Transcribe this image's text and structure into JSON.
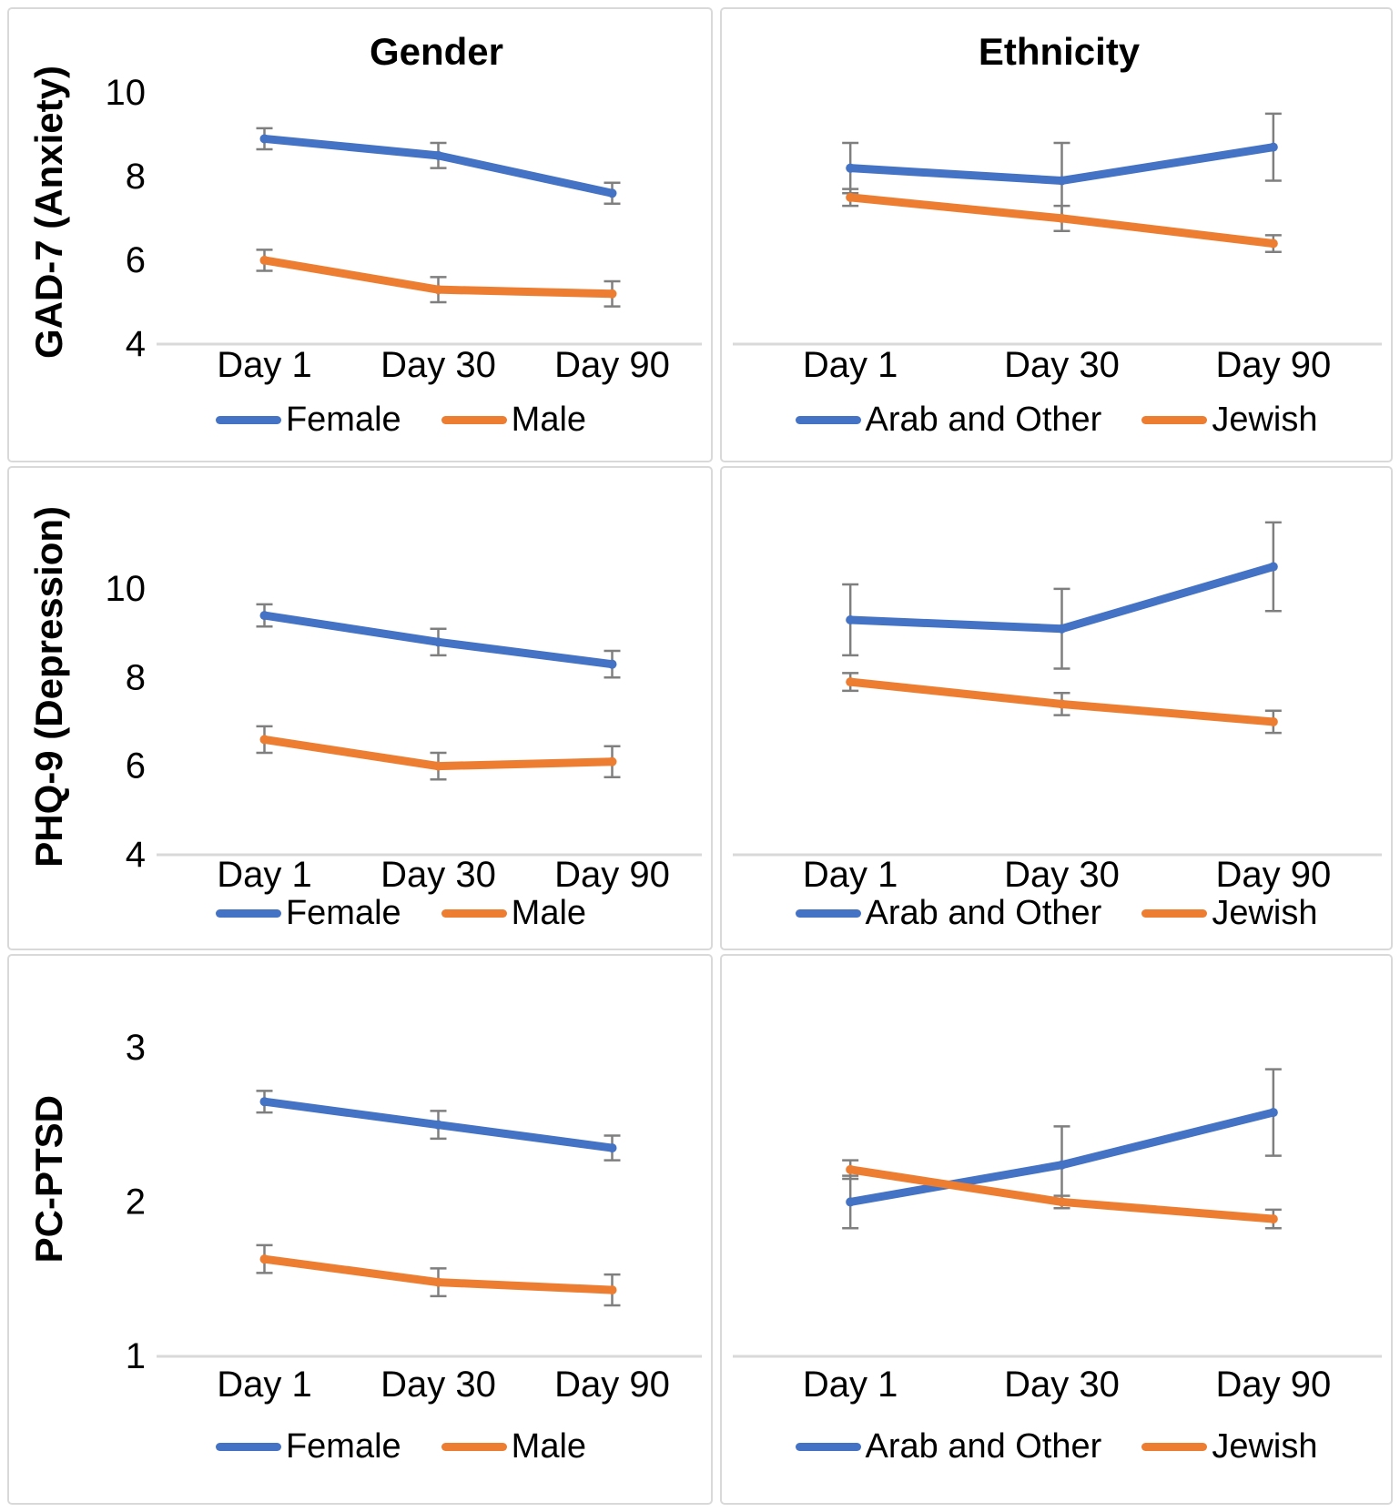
{
  "figure": {
    "column_titles": [
      "Gender",
      "Ethnicity"
    ],
    "row_titles": [
      "GAD-7 (Anxiety)",
      "PHQ-9 (Depression)",
      "PC-PTSD"
    ],
    "colors": {
      "series_blue": "#4472C4",
      "series_orange": "#ED7D31",
      "error_bar": "#7F7F7F",
      "axis_line": "#D9D9D9",
      "text": "#000000",
      "panel_border": "#D9D9D9",
      "background": "#FFFFFF"
    }
  },
  "chart_data": [
    {
      "type": "line",
      "id": "gad7-gender",
      "title": "Gender",
      "y_axis_title": "GAD-7 (Anxiety)",
      "categories": [
        "Day 1",
        "Day 30",
        "Day 90"
      ],
      "yticks": [
        4,
        6,
        8,
        10
      ],
      "ylim": [
        4,
        10.3
      ],
      "grid": false,
      "error_bars": true,
      "legend_position": "bottom",
      "series": [
        {
          "name": "Female",
          "color": "#4472C4",
          "values": [
            8.9,
            8.5,
            7.6
          ],
          "errors": [
            0.25,
            0.3,
            0.25
          ]
        },
        {
          "name": "Male",
          "color": "#ED7D31",
          "values": [
            6.0,
            5.3,
            5.2
          ],
          "errors": [
            0.25,
            0.3,
            0.3
          ]
        }
      ]
    },
    {
      "type": "line",
      "id": "gad7-ethnicity",
      "title": "Ethnicity",
      "y_axis_title": "",
      "categories": [
        "Day 1",
        "Day 30",
        "Day 90"
      ],
      "yticks": [],
      "ylim": [
        4,
        10.3
      ],
      "grid": false,
      "error_bars": true,
      "legend_position": "bottom",
      "series": [
        {
          "name": "Arab and Other",
          "color": "#4472C4",
          "values": [
            8.2,
            7.9,
            8.7
          ],
          "errors": [
            0.6,
            0.9,
            0.8
          ]
        },
        {
          "name": "Jewish",
          "color": "#ED7D31",
          "values": [
            7.5,
            7.0,
            6.4
          ],
          "errors": [
            0.2,
            0.3,
            0.2
          ]
        }
      ]
    },
    {
      "type": "line",
      "id": "phq9-gender",
      "title": "",
      "y_axis_title": "PHQ-9 (Depression)",
      "categories": [
        "Day 1",
        "Day 30",
        "Day 90"
      ],
      "yticks": [
        4,
        6,
        8,
        10
      ],
      "ylim": [
        4,
        11.6
      ],
      "grid": false,
      "error_bars": true,
      "legend_position": "bottom",
      "series": [
        {
          "name": "Female",
          "color": "#4472C4",
          "values": [
            9.4,
            8.8,
            8.3
          ],
          "errors": [
            0.25,
            0.3,
            0.3
          ]
        },
        {
          "name": "Male",
          "color": "#ED7D31",
          "values": [
            6.6,
            6.0,
            6.1
          ],
          "errors": [
            0.3,
            0.3,
            0.35
          ]
        }
      ]
    },
    {
      "type": "line",
      "id": "phq9-ethnicity",
      "title": "",
      "y_axis_title": "",
      "categories": [
        "Day 1",
        "Day 30",
        "Day 90"
      ],
      "yticks": [],
      "ylim": [
        4,
        11.6
      ],
      "grid": false,
      "error_bars": true,
      "legend_position": "bottom",
      "series": [
        {
          "name": "Arab and Other",
          "color": "#4472C4",
          "values": [
            9.3,
            9.1,
            10.5
          ],
          "errors": [
            0.8,
            0.9,
            1.0
          ]
        },
        {
          "name": "Jewish",
          "color": "#ED7D31",
          "values": [
            7.9,
            7.4,
            7.0
          ],
          "errors": [
            0.2,
            0.25,
            0.25
          ]
        }
      ]
    },
    {
      "type": "line",
      "id": "pcptsd-gender",
      "title": "",
      "y_axis_title": "PC-PTSD",
      "categories": [
        "Day 1",
        "Day 30",
        "Day 90"
      ],
      "yticks": [
        1,
        2,
        3
      ],
      "ylim": [
        1,
        3.3
      ],
      "grid": false,
      "error_bars": true,
      "legend_position": "bottom",
      "series": [
        {
          "name": "Female",
          "color": "#4472C4",
          "values": [
            2.65,
            2.5,
            2.35
          ],
          "errors": [
            0.07,
            0.09,
            0.08
          ]
        },
        {
          "name": "Male",
          "color": "#ED7D31",
          "values": [
            1.63,
            1.48,
            1.43
          ],
          "errors": [
            0.09,
            0.09,
            0.1
          ]
        }
      ]
    },
    {
      "type": "line",
      "id": "pcptsd-ethnicity",
      "title": "",
      "y_axis_title": "",
      "categories": [
        "Day 1",
        "Day 30",
        "Day 90"
      ],
      "yticks": [],
      "ylim": [
        1,
        3.3
      ],
      "grid": false,
      "error_bars": true,
      "legend_position": "bottom",
      "series": [
        {
          "name": "Arab and Other",
          "color": "#4472C4",
          "values": [
            2.0,
            2.24,
            2.58
          ],
          "errors": [
            0.17,
            0.25,
            0.28
          ]
        },
        {
          "name": "Jewish",
          "color": "#ED7D31",
          "values": [
            2.21,
            2.0,
            1.89
          ],
          "errors": [
            0.06,
            0.04,
            0.06
          ]
        }
      ]
    }
  ]
}
